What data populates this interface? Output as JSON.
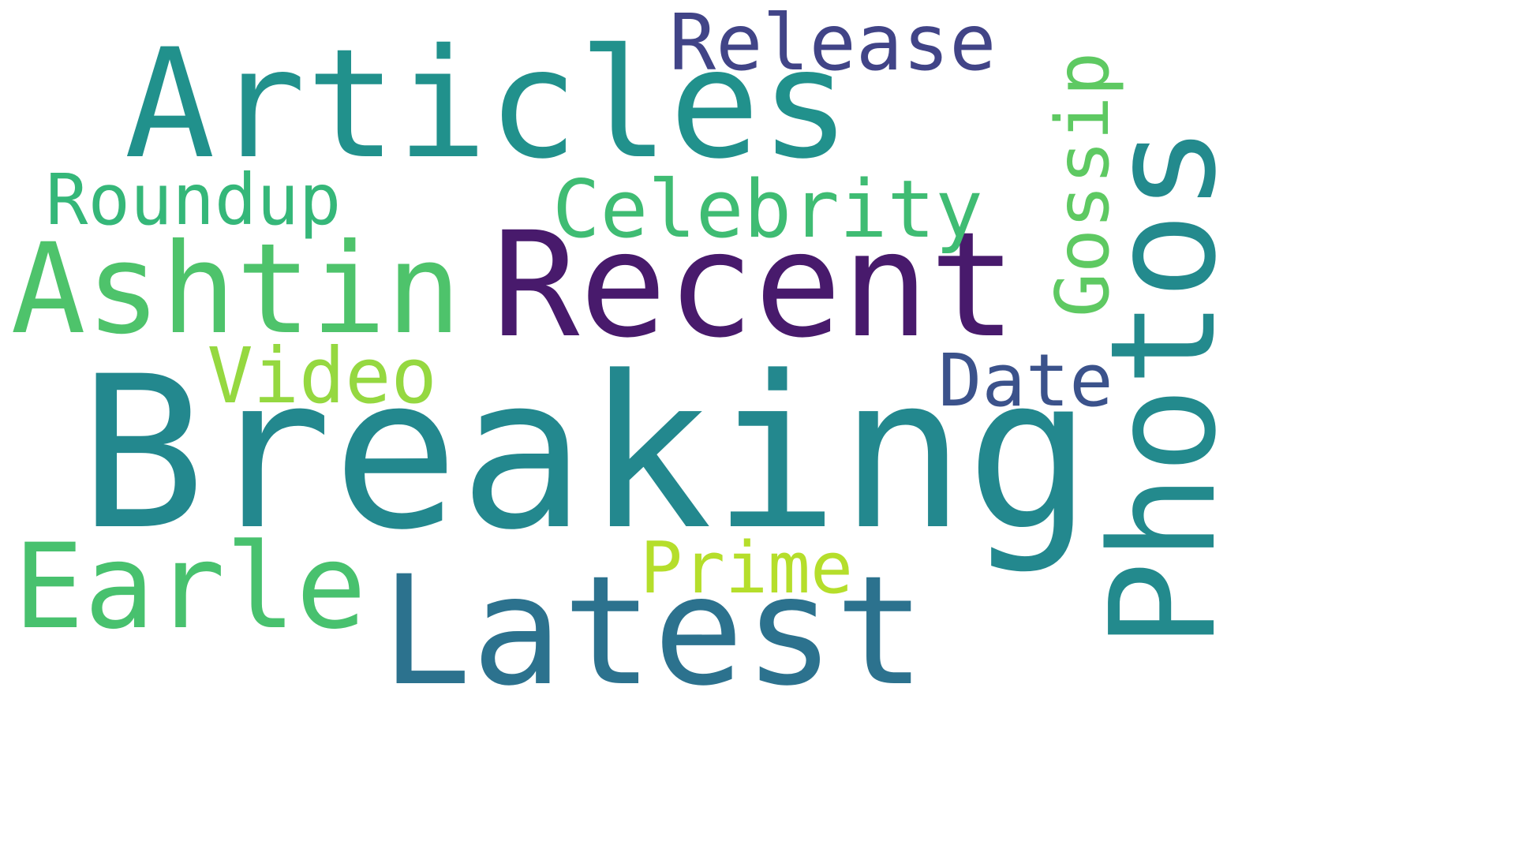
{
  "words": [
    {
      "id": "breaking",
      "text": "Breaking",
      "color": "#23888e",
      "orientation": "horizontal"
    },
    {
      "id": "photos",
      "text": "Photos",
      "color": "#238a8d",
      "orientation": "vertical"
    },
    {
      "id": "articles",
      "text": "Articles",
      "color": "#21918c",
      "orientation": "horizontal"
    },
    {
      "id": "recent",
      "text": "Recent",
      "color": "#481a6c",
      "orientation": "horizontal"
    },
    {
      "id": "latest",
      "text": "Latest",
      "color": "#2c728e",
      "orientation": "horizontal"
    },
    {
      "id": "ashtin",
      "text": "Ashtin",
      "color": "#4ec36b",
      "orientation": "horizontal"
    },
    {
      "id": "earle",
      "text": "Earle",
      "color": "#48c16e",
      "orientation": "horizontal"
    },
    {
      "id": "celebrity",
      "text": "Celebrity",
      "color": "#3fbc73",
      "orientation": "horizontal"
    },
    {
      "id": "release",
      "text": "Release",
      "color": "#414487",
      "orientation": "horizontal"
    },
    {
      "id": "gossip",
      "text": "Gossip",
      "color": "#5ec962",
      "orientation": "vertical"
    },
    {
      "id": "roundup",
      "text": "Roundup",
      "color": "#35b779",
      "orientation": "horizontal"
    },
    {
      "id": "video",
      "text": "Video",
      "color": "#95d840",
      "orientation": "horizontal"
    },
    {
      "id": "date",
      "text": "Date",
      "color": "#3b528b",
      "orientation": "horizontal"
    },
    {
      "id": "prime",
      "text": "Prime",
      "color": "#b5de2b",
      "orientation": "horizontal"
    }
  ]
}
